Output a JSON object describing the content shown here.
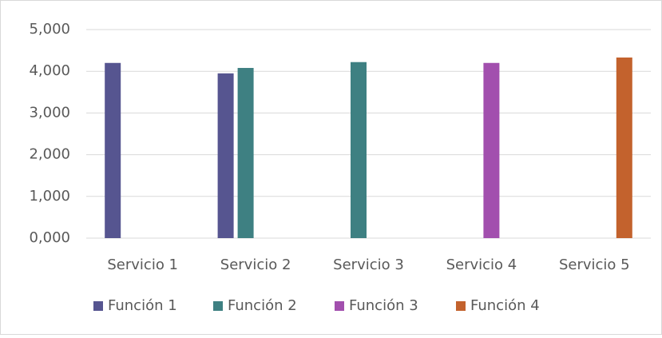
{
  "chart_data": {
    "type": "bar",
    "categories": [
      "Servicio 1",
      "Servicio 2",
      "Servicio 3",
      "Servicio 4",
      "Servicio 5"
    ],
    "series": [
      {
        "name": "Función 1",
        "color": "#565590",
        "values": [
          4.2,
          3.95,
          null,
          null,
          null
        ]
      },
      {
        "name": "Función 2",
        "color": "#3e8082",
        "values": [
          null,
          4.08,
          4.22,
          null,
          null
        ]
      },
      {
        "name": "Función 3",
        "color": "#a24fae",
        "values": [
          null,
          null,
          null,
          4.2,
          null
        ]
      },
      {
        "name": "Función 4",
        "color": "#c3622d",
        "values": [
          null,
          null,
          null,
          null,
          4.33
        ]
      }
    ],
    "ylim": [
      0,
      5
    ],
    "yticks": [
      {
        "value": 0,
        "label": "0,000"
      },
      {
        "value": 1,
        "label": "1,000"
      },
      {
        "value": 2,
        "label": "2,000"
      },
      {
        "value": 3,
        "label": "3,000"
      },
      {
        "value": 4,
        "label": "4,000"
      },
      {
        "value": 5,
        "label": "5,000"
      }
    ],
    "grid": true,
    "legend": "bottom"
  }
}
